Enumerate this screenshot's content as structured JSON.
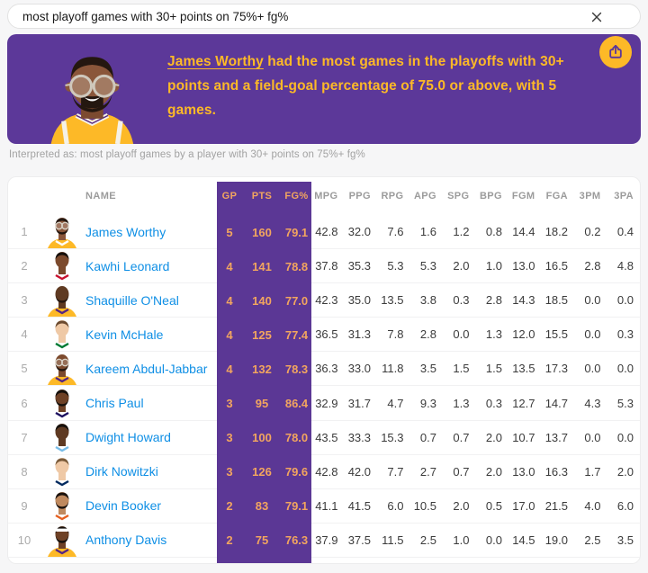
{
  "search": {
    "query": "most playoff games with 30+ points on 75%+ fg%",
    "clear_icon": "close-x"
  },
  "answer": {
    "subject": "James Worthy",
    "line1_after": " had the most games in the playoffs with 30+",
    "line2": "points and a field-goal percentage of 75.0 or above, with 5 games.",
    "colors": {
      "background": "#5C3899",
      "text": "#FDB927",
      "share_button_bg": "#FDB927",
      "share_glyph": "#5C3899"
    },
    "illustration": {
      "description": "cartoon player with goggles and beard in gold jersey",
      "skin": "#8A563A",
      "hair": "#241710",
      "jersey": "#FDB927",
      "jersey_trim": "#F5F1E6",
      "jersey_accent": "#552583"
    }
  },
  "interpreted_as": "Interpreted as: most playoff games by a player with 30+ points on 75%+ fg%",
  "table": {
    "columns": [
      "NAME",
      "GP",
      "PTS",
      "FG%",
      "MPG",
      "PPG",
      "RPG",
      "APG",
      "SPG",
      "BPG",
      "FGM",
      "FGA",
      "3PM",
      "3PA"
    ],
    "highlighted_columns": [
      "GP",
      "PTS",
      "FG%"
    ],
    "colors": {
      "highlight_background": "#5B3795",
      "highlight_text": "#F2A55F",
      "player_link": "#0F8FE5"
    },
    "rows": [
      {
        "rank": "1",
        "name": "James Worthy",
        "stats": [
          "5",
          "160",
          "79.1",
          "42.8",
          "32.0",
          "7.6",
          "1.6",
          "1.2",
          "0.8",
          "14.4",
          "18.2",
          "0.2",
          "0.4"
        ],
        "avatar": {
          "skin": "#8A563A",
          "hair": "#241710",
          "jersey": "#FDB927",
          "trim": "#FFFFFF",
          "goggles": true,
          "beard": true,
          "headband": false
        }
      },
      {
        "rank": "2",
        "name": "Kawhi Leonard",
        "stats": [
          "4",
          "141",
          "78.8",
          "37.8",
          "35.3",
          "5.3",
          "5.3",
          "2.0",
          "1.0",
          "13.0",
          "16.5",
          "2.8",
          "4.8"
        ],
        "avatar": {
          "skin": "#7C4A2D",
          "hair": "#15100C",
          "jersey": "#FFFFFF",
          "trim": "#C8102E",
          "goggles": false,
          "beard": false,
          "headband": false
        }
      },
      {
        "rank": "3",
        "name": "Shaquille O'Neal",
        "stats": [
          "4",
          "140",
          "77.0",
          "42.3",
          "35.0",
          "13.5",
          "3.8",
          "0.3",
          "2.8",
          "14.3",
          "18.5",
          "0.0",
          "0.0"
        ],
        "avatar": {
          "skin": "#5F3A22",
          "hair": null,
          "jersey": "#FDB927",
          "trim": "#552583",
          "goggles": false,
          "beard": true,
          "headband": false
        }
      },
      {
        "rank": "4",
        "name": "Kevin McHale",
        "stats": [
          "4",
          "125",
          "77.4",
          "36.5",
          "31.3",
          "7.8",
          "2.8",
          "0.0",
          "1.3",
          "12.0",
          "15.5",
          "0.0",
          "0.3"
        ],
        "avatar": {
          "skin": "#EFC9A6",
          "hair": "#6B4A2F",
          "jersey": "#FFFFFF",
          "trim": "#007A33",
          "goggles": false,
          "beard": false,
          "headband": false
        }
      },
      {
        "rank": "5",
        "name": "Kareem Abdul-Jabbar",
        "stats": [
          "4",
          "132",
          "78.3",
          "36.3",
          "33.0",
          "11.8",
          "3.5",
          "1.5",
          "1.5",
          "13.5",
          "17.3",
          "0.0",
          "0.0"
        ],
        "avatar": {
          "skin": "#7C4A2D",
          "hair": null,
          "jersey": "#FDB927",
          "trim": "#552583",
          "goggles": true,
          "beard": true,
          "headband": false
        }
      },
      {
        "rank": "6",
        "name": "Chris Paul",
        "stats": [
          "3",
          "95",
          "86.4",
          "32.9",
          "31.7",
          "4.7",
          "9.3",
          "1.3",
          "0.3",
          "12.7",
          "14.7",
          "4.3",
          "5.3"
        ],
        "avatar": {
          "skin": "#6E4126",
          "hair": "#15100C",
          "jersey": "#FFFFFF",
          "trim": "#1D1160",
          "goggles": false,
          "beard": true,
          "headband": false
        }
      },
      {
        "rank": "7",
        "name": "Dwight Howard",
        "stats": [
          "3",
          "100",
          "78.0",
          "43.5",
          "33.3",
          "15.3",
          "0.7",
          "0.7",
          "2.0",
          "10.7",
          "13.7",
          "0.0",
          "0.0"
        ],
        "avatar": {
          "skin": "#5F3A22",
          "hair": "#15100C",
          "jersey": "#FFFFFF",
          "trim": "#79BDE8",
          "goggles": false,
          "beard": false,
          "headband": false
        }
      },
      {
        "rank": "8",
        "name": "Dirk Nowitzki",
        "stats": [
          "3",
          "126",
          "79.6",
          "42.8",
          "42.0",
          "7.7",
          "2.7",
          "0.7",
          "2.0",
          "13.0",
          "16.3",
          "1.7",
          "2.0"
        ],
        "avatar": {
          "skin": "#EFC9A6",
          "hair": "#7A5B3A",
          "jersey": "#FFFFFF",
          "trim": "#00285E",
          "goggles": false,
          "beard": false,
          "headband": false
        }
      },
      {
        "rank": "9",
        "name": "Devin Booker",
        "stats": [
          "2",
          "83",
          "79.1",
          "41.1",
          "41.5",
          "6.0",
          "10.5",
          "2.0",
          "0.5",
          "17.0",
          "21.5",
          "4.0",
          "6.0"
        ],
        "avatar": {
          "skin": "#C08A5F",
          "hair": "#1A120D",
          "jersey": "#FFFFFF",
          "trim": "#E56020",
          "goggles": false,
          "beard": true,
          "headband": false
        }
      },
      {
        "rank": "10",
        "name": "Anthony Davis",
        "stats": [
          "2",
          "75",
          "76.3",
          "37.9",
          "37.5",
          "11.5",
          "2.5",
          "1.0",
          "0.0",
          "14.5",
          "19.0",
          "2.5",
          "3.5"
        ],
        "avatar": {
          "skin": "#6E4126",
          "hair": "#15100C",
          "jersey": "#FDB927",
          "trim": "#552583",
          "goggles": false,
          "beard": true,
          "headband": true
        }
      }
    ]
  }
}
